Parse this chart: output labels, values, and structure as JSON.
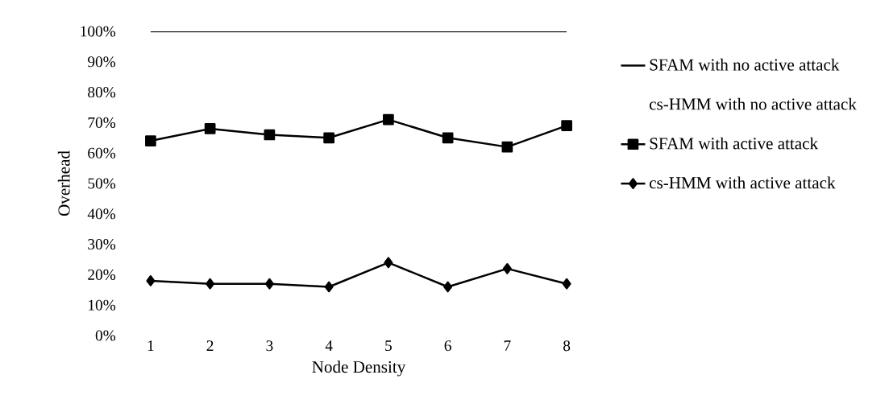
{
  "chart_data": {
    "type": "line",
    "xlabel": "Node Density",
    "ylabel": "Overhead",
    "categories": [
      "1",
      "2",
      "3",
      "4",
      "5",
      "6",
      "7",
      "8"
    ],
    "ylim": [
      0,
      100
    ],
    "yticks": [
      {
        "value": 0,
        "label": "0%"
      },
      {
        "value": 10,
        "label": "10%"
      },
      {
        "value": 20,
        "label": "20%"
      },
      {
        "value": 30,
        "label": "30%"
      },
      {
        "value": 40,
        "label": "40%"
      },
      {
        "value": 50,
        "label": "50%"
      },
      {
        "value": 60,
        "label": "60%"
      },
      {
        "value": 70,
        "label": "70%"
      },
      {
        "value": 80,
        "label": "80%"
      },
      {
        "value": 90,
        "label": "90%"
      },
      {
        "value": 100,
        "label": "100%"
      }
    ],
    "series": [
      {
        "name": "SFAM with no active attack",
        "color": "#000000",
        "marker": "none",
        "values": [
          100,
          100,
          100,
          100,
          100,
          100,
          100,
          100
        ]
      },
      {
        "name": "cs-HMM with no active attack",
        "marker": "none",
        "values": [
          null,
          null,
          null,
          null,
          null,
          null,
          null,
          null
        ]
      },
      {
        "name": "SFAM with active attack",
        "color": "#000000",
        "marker": "square",
        "values": [
          64,
          68,
          66,
          65,
          71,
          65,
          62,
          69
        ]
      },
      {
        "name": "cs-HMM with active attack",
        "color": "#000000",
        "marker": "diamond",
        "values": [
          18,
          17,
          17,
          16,
          24,
          16,
          22,
          17
        ]
      }
    ],
    "legend": "right",
    "grid": false
  }
}
